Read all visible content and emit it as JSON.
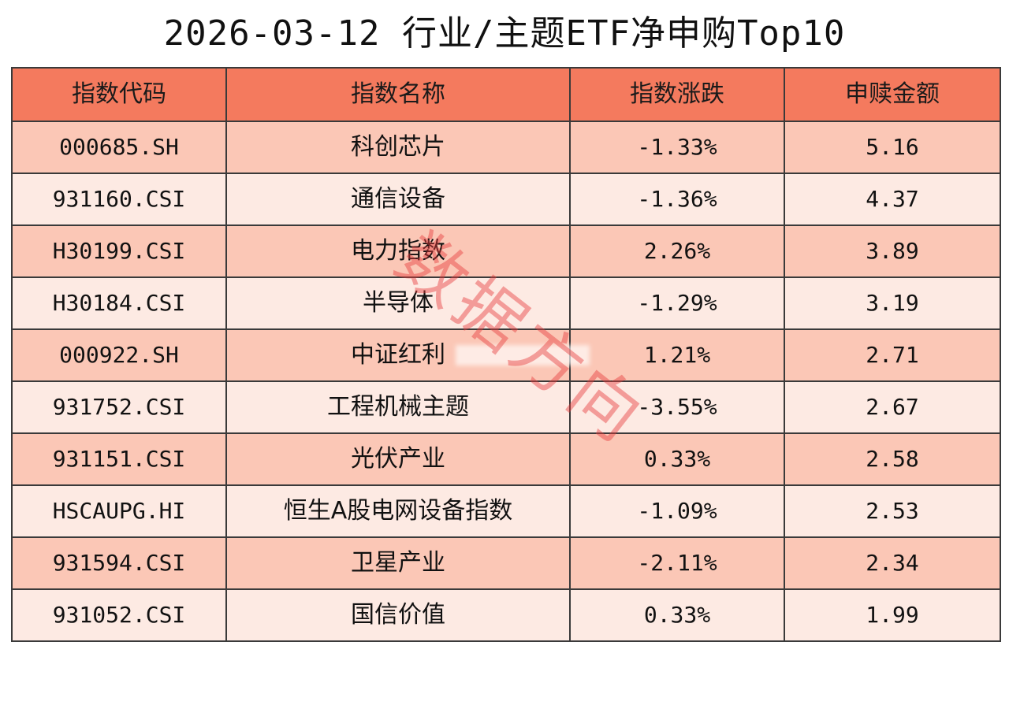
{
  "title": "2026-03-12 行业/主题ETF净申购Top10",
  "headers": [
    "指数代码",
    "指数名称",
    "指数涨跌",
    "申赎金额"
  ],
  "rows": [
    [
      "000685.SH",
      "科创芯片",
      "-1.33%",
      "5.16"
    ],
    [
      "931160.CSI",
      "通信设备",
      "-1.36%",
      "4.37"
    ],
    [
      "H30199.CSI",
      "电力指数",
      "2.26%",
      "3.89"
    ],
    [
      "H30184.CSI",
      "半导体",
      "-1.29%",
      "3.19"
    ],
    [
      "000922.SH",
      "中证红利",
      "1.21%",
      "2.71"
    ],
    [
      "931752.CSI",
      "工程机械主题",
      "-3.55%",
      "2.67"
    ],
    [
      "931151.CSI",
      "光伏产业",
      "0.33%",
      "2.58"
    ],
    [
      "HSCAUPG.HI",
      "恒生A股电网设备指数",
      "-1.09%",
      "2.53"
    ],
    [
      "931594.CSI",
      "卫星产业",
      "-2.11%",
      "2.34"
    ],
    [
      "931052.CSI",
      "国信价值",
      "0.33%",
      "1.99"
    ]
  ],
  "watermark": "数据方向",
  "colors": {
    "header_bg": "#f47a5e",
    "row_odd": "#fbc7b6",
    "row_even": "#fdeae3",
    "watermark": "#e63c3c"
  }
}
